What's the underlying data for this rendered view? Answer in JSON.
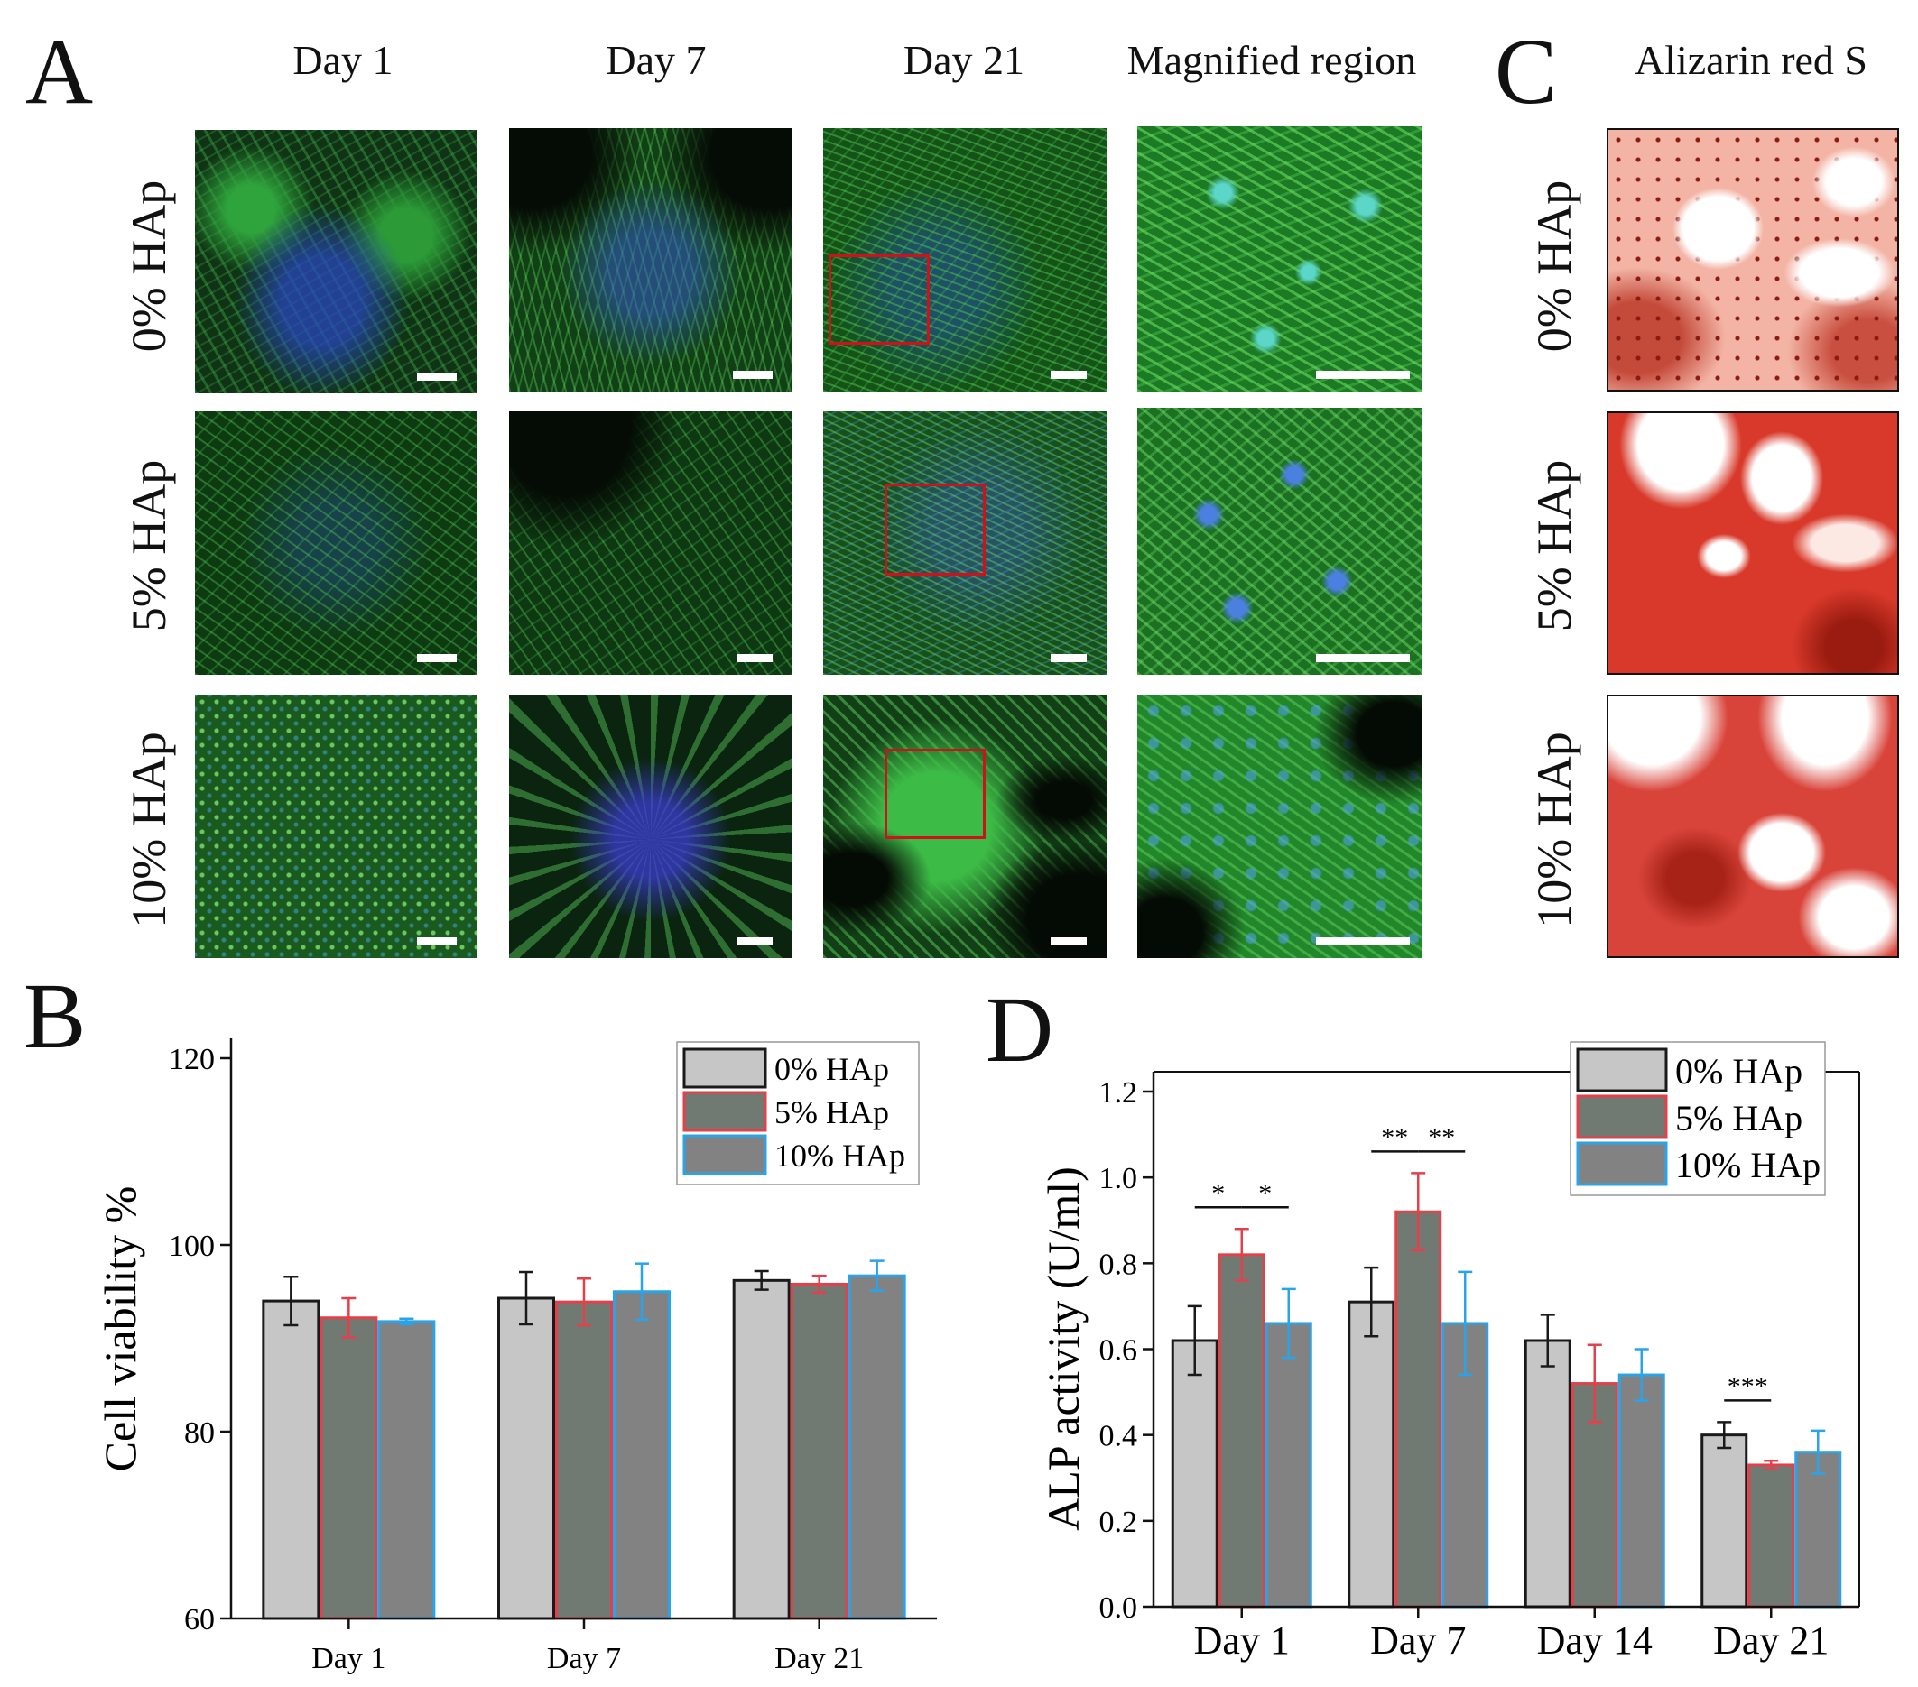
{
  "panel_a": {
    "letter": "A",
    "columns": [
      "Day 1",
      "Day 7",
      "Day 21",
      "Magnified region"
    ],
    "rows": [
      "0% HAp",
      "5% HAp",
      "10% HAp"
    ]
  },
  "panel_c": {
    "letter": "C",
    "title": "Alizarin red S",
    "rows": [
      "0% HAp",
      "5% HAp",
      "10% HAp"
    ]
  },
  "chart_data": [
    {
      "panel": "B",
      "type": "bar",
      "title": "",
      "xlabel": "",
      "ylabel": "Cell viability %",
      "ylim": [
        60,
        120
      ],
      "yticks": [
        60,
        80,
        100,
        120
      ],
      "categories": [
        "Day 1",
        "Day 7",
        "Day 21"
      ],
      "legend_position": "top-right",
      "series": [
        {
          "name": "0% HAp",
          "fill": "#c6c6c6",
          "edge": "#1a1a1a",
          "values": [
            94.0,
            94.3,
            96.2
          ],
          "errors": [
            2.6,
            2.8,
            1.0
          ]
        },
        {
          "name": "5% HAp",
          "fill": "#717a72",
          "edge": "#e5404a",
          "values": [
            92.2,
            93.9,
            95.8
          ],
          "errors": [
            2.1,
            2.5,
            0.9
          ]
        },
        {
          "name": "10% HAp",
          "fill": "#828282",
          "edge": "#2aa4e8",
          "values": [
            91.8,
            95.0,
            96.7
          ],
          "errors": [
            0.3,
            3.0,
            1.6
          ]
        }
      ]
    },
    {
      "panel": "D",
      "type": "bar",
      "title": "",
      "xlabel": "",
      "ylabel": "ALP activity (U/ml)",
      "ylim": [
        0.0,
        1.2
      ],
      "yticks": [
        "0.0",
        "0.2",
        "0.4",
        "0.6",
        "0.8",
        "1.0",
        "1.2"
      ],
      "categories": [
        "Day 1",
        "Day 7",
        "Day 14",
        "Day 21"
      ],
      "legend_position": "top-right",
      "series": [
        {
          "name": "0% HAp",
          "fill": "#c6c6c6",
          "edge": "#1a1a1a",
          "values": [
            0.62,
            0.71,
            0.62,
            0.4
          ],
          "errors": [
            0.08,
            0.08,
            0.06,
            0.03
          ]
        },
        {
          "name": "5% HAp",
          "fill": "#717a72",
          "edge": "#e5404a",
          "values": [
            0.82,
            0.92,
            0.52,
            0.33
          ],
          "errors": [
            0.06,
            0.09,
            0.09,
            0.01
          ]
        },
        {
          "name": "10% HAp",
          "fill": "#828282",
          "edge": "#2aa4e8",
          "values": [
            0.66,
            0.66,
            0.54,
            0.36
          ],
          "errors": [
            0.08,
            0.12,
            0.06,
            0.05
          ]
        }
      ],
      "significance": [
        {
          "category": 0,
          "from": 0,
          "to": 1,
          "label": "*"
        },
        {
          "category": 0,
          "from": 1,
          "to": 2,
          "label": "*"
        },
        {
          "category": 1,
          "from": 0,
          "to": 1,
          "label": "**"
        },
        {
          "category": 1,
          "from": 1,
          "to": 2,
          "label": "**"
        },
        {
          "category": 3,
          "from": 0,
          "to": 1,
          "label": "***"
        }
      ]
    }
  ]
}
